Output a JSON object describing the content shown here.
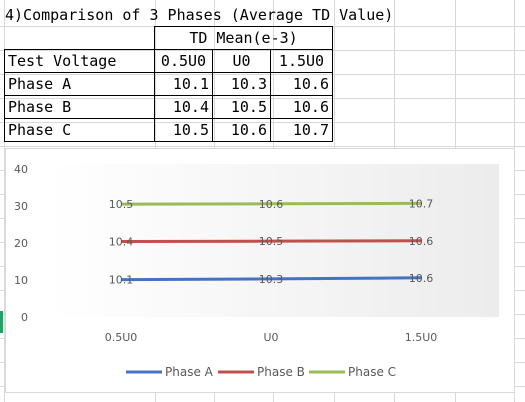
{
  "sheet": {
    "title": "4)Comparison of 3 Phases (Average TD Value)",
    "header_group": "TD Mean(e-3)",
    "row_header": "Test Voltage",
    "columns": [
      "0.5U0",
      "U0",
      "1.5U0"
    ],
    "rows": [
      {
        "label": "Phase A",
        "values": [
          "10.1",
          "10.3",
          "10.6"
        ]
      },
      {
        "label": "Phase B",
        "values": [
          "10.4",
          "10.5",
          "10.6"
        ]
      },
      {
        "label": "Phase C",
        "values": [
          "10.5",
          "10.6",
          "10.7"
        ]
      }
    ]
  },
  "chart_data": {
    "type": "line",
    "categories": [
      "0.5U0",
      "U0",
      "1.5U0"
    ],
    "series": [
      {
        "name": "Phase A",
        "values": [
          10.1,
          10.3,
          10.6
        ],
        "labels": [
          "10.1",
          "10.3",
          "10.6"
        ],
        "plot_offset": 0,
        "color": "#4472c4"
      },
      {
        "name": "Phase B",
        "values": [
          10.4,
          10.5,
          10.6
        ],
        "labels": [
          "10.4",
          "10.5",
          "10.6"
        ],
        "plot_offset": 10,
        "color": "#c0504d"
      },
      {
        "name": "Phase C",
        "values": [
          10.5,
          10.6,
          10.7
        ],
        "labels": [
          "10.5",
          "10.6",
          "10.7"
        ],
        "plot_offset": 20,
        "color": "#9bbb59"
      }
    ],
    "stacked": true,
    "ylim": [
      0,
      40
    ],
    "yticks": [
      "0",
      "10",
      "20",
      "30",
      "40"
    ],
    "grid": false,
    "legend": "bottom",
    "title": "",
    "xlabel": "",
    "ylabel": ""
  }
}
